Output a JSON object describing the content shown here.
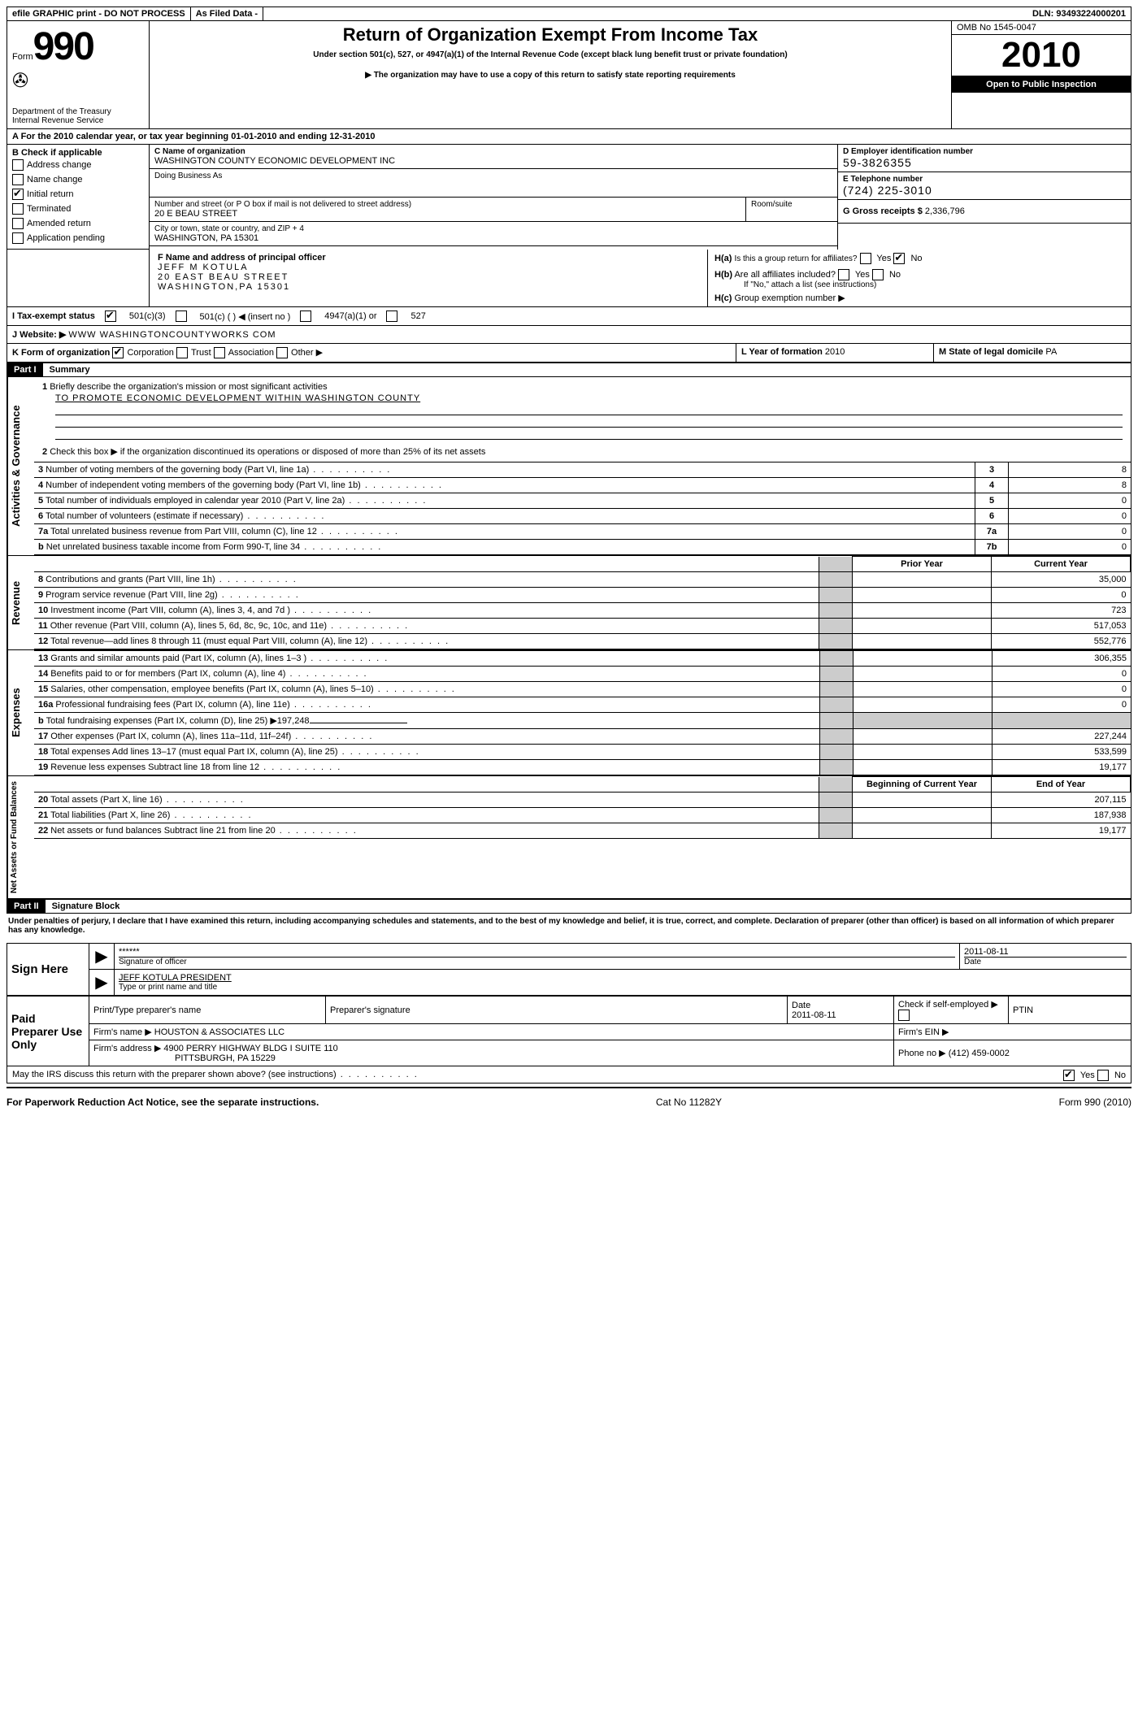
{
  "title_bar": {
    "efile": "efile GRAPHIC print - DO NOT PROCESS",
    "as_filed": "As Filed Data -",
    "dln_label": "DLN:",
    "dln": "93493224000201"
  },
  "header": {
    "form_label": "Form",
    "form_num": "990",
    "dept": "Department of the Treasury\nInternal Revenue Service",
    "main_title": "Return of Organization Exempt From Income Tax",
    "sub1": "Under section 501(c), 527, or 4947(a)(1) of the Internal Revenue Code (except black lung benefit trust or private foundation)",
    "sub2": "The organization may have to use a copy of this return to satisfy state reporting requirements",
    "omb": "OMB No 1545-0047",
    "year": "2010",
    "inspection": "Open to Public Inspection"
  },
  "section_a": "A  For the 2010  calendar year, or tax year beginning 01-01-2010    and ending 12-31-2010",
  "box_b": {
    "title": "B  Check if applicable",
    "items": [
      "Address change",
      "Name change",
      "Initial return",
      "Terminated",
      "Amended return",
      "Application pending"
    ],
    "checked_idx": 2
  },
  "box_c": {
    "name_label": "C Name of organization",
    "name": "WASHINGTON COUNTY ECONOMIC DEVELOPMENT INC",
    "dba_label": "Doing Business As",
    "dba": "",
    "street_label": "Number and street (or P O  box if mail is not delivered to street address)",
    "street": "20 E BEAU STREET",
    "room_label": "Room/suite",
    "city_label": "City or town, state or country, and ZIP + 4",
    "city": "WASHINGTON, PA  15301"
  },
  "box_d": {
    "label": "D Employer identification number",
    "value": "59-3826355"
  },
  "box_e": {
    "label": "E Telephone number",
    "value": "(724) 225-3010"
  },
  "box_g": {
    "label": "G Gross receipts $",
    "value": "2,336,796"
  },
  "box_f": {
    "label": "F   Name and address of principal officer",
    "name": "JEFF M KOTULA",
    "street": "20 EAST BEAU STREET",
    "csz": "WASHINGTON,PA 15301"
  },
  "box_h": {
    "a_q": "Is this a group return for affiliates?",
    "a_yes": "Yes",
    "a_no": "No",
    "a_checked": "no",
    "b_q": "Are all affiliates included?",
    "b_note": "If \"No,\" attach a list  (see instructions)",
    "c_q": "Group exemption number"
  },
  "box_i": {
    "label": "I   Tax-exempt status",
    "opts": [
      "501(c)(3)",
      "501(c) (   ) ◀ (insert no )",
      "4947(a)(1) or",
      "527"
    ],
    "checked_idx": 0
  },
  "box_j": {
    "label": "J   Website: ▶",
    "value": "WWW WASHINGTONCOUNTYWORKS COM"
  },
  "box_k": {
    "label": "K Form of organization",
    "opts": [
      "Corporation",
      "Trust",
      "Association",
      "Other ▶"
    ],
    "checked_idx": 0
  },
  "box_l": {
    "label": "L Year of formation",
    "value": "2010"
  },
  "box_m": {
    "label": "M State of legal domicile",
    "value": "PA"
  },
  "part1": {
    "num": "Part I",
    "title": "Summary"
  },
  "sections": {
    "ag": "Activities & Governance",
    "rev": "Revenue",
    "exp": "Expenses",
    "na": "Net Assets or Fund Balances"
  },
  "line1": {
    "num": "1",
    "text": "Briefly describe the organization's mission or most significant activities",
    "val": "TO PROMOTE ECONOMIC DEVELOPMENT WITHIN WASHINGTON COUNTY"
  },
  "line2": {
    "num": "2",
    "text": "Check this box ▶    if the organization discontinued its operations or disposed of more than 25% of its net assets"
  },
  "ag_lines": [
    {
      "num": "3",
      "text": "Number of voting members of the governing body (Part VI, line 1a)",
      "box": "3",
      "val": "8"
    },
    {
      "num": "4",
      "text": "Number of independent voting members of the governing body (Part VI, line 1b)",
      "box": "4",
      "val": "8"
    },
    {
      "num": "5",
      "text": "Total number of individuals employed in calendar year 2010 (Part V, line 2a)",
      "box": "5",
      "val": "0"
    },
    {
      "num": "6",
      "text": "Total number of volunteers (estimate if necessary)",
      "box": "6",
      "val": "0"
    },
    {
      "num": "7a",
      "text": "Total unrelated business revenue from Part VIII, column (C), line 12",
      "box": "7a",
      "val": "0"
    },
    {
      "num": "b",
      "text": "Net unrelated business taxable income from Form 990-T, line 34",
      "box": "7b",
      "val": "0"
    }
  ],
  "col_headers": {
    "prior": "Prior Year",
    "current": "Current Year",
    "boy": "Beginning of Current Year",
    "eoy": "End of Year"
  },
  "rev_lines": [
    {
      "num": "8",
      "text": "Contributions and grants (Part VIII, line 1h)",
      "prior": "",
      "cur": "35,000"
    },
    {
      "num": "9",
      "text": "Program service revenue (Part VIII, line 2g)",
      "prior": "",
      "cur": "0"
    },
    {
      "num": "10",
      "text": "Investment income (Part VIII, column (A), lines 3, 4, and 7d )",
      "prior": "",
      "cur": "723"
    },
    {
      "num": "11",
      "text": "Other revenue (Part VIII, column (A), lines 5, 6d, 8c, 9c, 10c, and 11e)",
      "prior": "",
      "cur": "517,053"
    },
    {
      "num": "12",
      "text": "Total revenue—add lines 8 through 11 (must equal Part VIII, column (A), line 12)",
      "prior": "",
      "cur": "552,776"
    }
  ],
  "exp_lines": [
    {
      "num": "13",
      "text": "Grants and similar amounts paid (Part IX, column (A), lines 1–3 )",
      "prior": "",
      "cur": "306,355"
    },
    {
      "num": "14",
      "text": "Benefits paid to or for members (Part IX, column (A), line 4)",
      "prior": "",
      "cur": "0"
    },
    {
      "num": "15",
      "text": "Salaries, other compensation, employee benefits (Part IX, column (A), lines 5–10)",
      "prior": "",
      "cur": "0"
    },
    {
      "num": "16a",
      "text": "Professional fundraising fees (Part IX, column (A), line 11e)",
      "prior": "",
      "cur": "0"
    },
    {
      "num": "b",
      "text": "Total fundraising expenses (Part IX, column (D), line 25) ▶197,248",
      "fundraising": true
    },
    {
      "num": "17",
      "text": "Other expenses (Part IX, column (A), lines 11a–11d, 11f–24f)",
      "prior": "",
      "cur": "227,244"
    },
    {
      "num": "18",
      "text": "Total expenses  Add lines 13–17 (must equal Part IX, column (A), line 25)",
      "prior": "",
      "cur": "533,599"
    },
    {
      "num": "19",
      "text": "Revenue less expenses  Subtract line 18 from line 12",
      "prior": "",
      "cur": "19,177"
    }
  ],
  "na_lines": [
    {
      "num": "20",
      "text": "Total assets (Part X, line 16)",
      "prior": "",
      "cur": "207,115"
    },
    {
      "num": "21",
      "text": "Total liabilities (Part X, line 26)",
      "prior": "",
      "cur": "187,938"
    },
    {
      "num": "22",
      "text": "Net assets or fund balances  Subtract line 21 from line 20",
      "prior": "",
      "cur": "19,177"
    }
  ],
  "part2": {
    "num": "Part II",
    "title": "Signature Block"
  },
  "perjury": "Under penalties of perjury, I declare that I have examined this return, including accompanying schedules and statements, and to the best of my knowledge and belief, it is true, correct, and complete. Declaration of preparer (other than officer) is based on all information of which preparer has any knowledge.",
  "sign_here": "Sign Here",
  "sig": {
    "stars": "******",
    "sig_label": "Signature of officer",
    "date": "2011-08-11",
    "date_label": "Date",
    "name": "JEFF KOTULA PRESIDENT",
    "name_label": "Type or print name and title"
  },
  "paid": "Paid Preparer Use Only",
  "prep": {
    "c1": "Print/Type preparer's name",
    "c2": "Preparer's signature",
    "c3": "Date",
    "c3v": "2011-08-11",
    "c4": "Check if self-employed ▶",
    "c5": "PTIN",
    "firm_name_label": "Firm's name  ▶",
    "firm_name": "HOUSTON & ASSOCIATES LLC",
    "firm_addr_label": "Firm's address ▶",
    "firm_addr1": "4900 PERRY HIGHWAY BLDG I SUITE 110",
    "firm_addr2": "PITTSBURGH, PA  15229",
    "ein_label": "Firm's EIN  ▶",
    "phone_label": "Phone no  ▶",
    "phone": "(412) 459-0002"
  },
  "discuss": {
    "q": "May the IRS discuss this return with the preparer shown above? (see instructions)",
    "yes": "Yes",
    "no": "No",
    "checked": "yes"
  },
  "footer": {
    "left": "For Paperwork Reduction Act Notice, see the separate instructions.",
    "mid": "Cat No  11282Y",
    "right": "Form 990 (2010)"
  }
}
